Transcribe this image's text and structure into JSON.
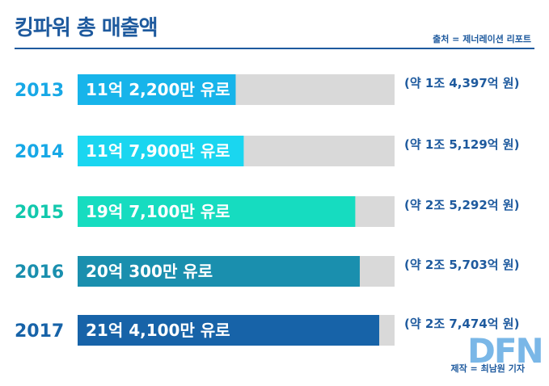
{
  "title": "킹파워 총 매출액",
  "source": "출처 = 제너레이션 리포트",
  "credit": "제작 = 최남원 기자",
  "logo": "DFN",
  "colors": {
    "title": "#1e5a9e",
    "track": "#d9d9d9",
    "krw_text": "#1e5a9e"
  },
  "chart_data": {
    "type": "bar",
    "orientation": "horizontal",
    "unit": "만 유로",
    "xlim": [
      0,
      2500
    ],
    "categories": [
      "2013",
      "2014",
      "2015",
      "2016",
      "2017"
    ],
    "values": [
      112200,
      117900,
      197100,
      200300,
      214100
    ],
    "bar_labels": [
      "11억 2,200만 유로",
      "11억 7,900만 유로",
      "19억 7,100만 유로",
      "20억 300만 유로",
      "21억 4,100만 유로"
    ],
    "krw_labels": [
      "(약 1조 4,397억 원)",
      "(약 1조 5,129억 원)",
      "(약 2조 5,292억 원)",
      "(약 2조 5,703억 원)",
      "(약 2조 7,474억 원)"
    ],
    "bar_colors": [
      "#17b4ea",
      "#1ad6f0",
      "#16dcc0",
      "#1a8fae",
      "#1763a8"
    ],
    "year_colors": [
      "#17a8e6",
      "#17a8e6",
      "#12c8ad",
      "#1a8fae",
      "#1763a8"
    ],
    "track_max_value": 225000
  }
}
